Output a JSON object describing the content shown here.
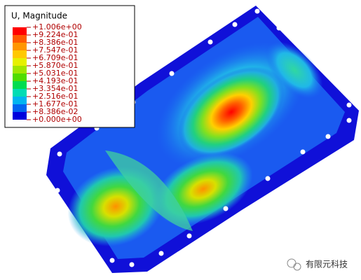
{
  "legend": {
    "title": "U, Magnitude",
    "labels": [
      "+1.006e+00",
      "+9.224e-01",
      "+8.386e-01",
      "+7.547e-01",
      "+6.709e-01",
      "+5.870e-01",
      "+5.031e-01",
      "+4.193e-01",
      "+3.354e-01",
      "+2.516e-01",
      "+1.677e-01",
      "+8.386e-02",
      "+0.000e+00"
    ]
  },
  "watermark": {
    "text": "有限元科技"
  }
}
